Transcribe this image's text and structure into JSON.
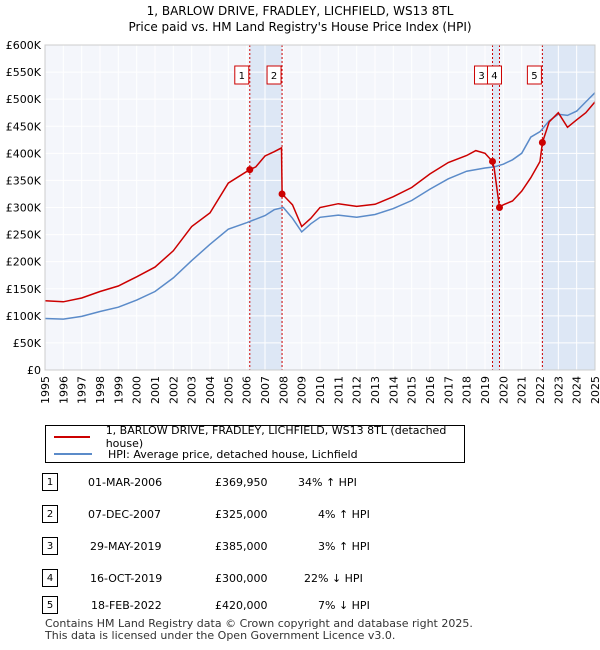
{
  "chart_data": {
    "type": "line",
    "title": "1, BARLOW DRIVE, FRADLEY, LICHFIELD, WS13 8TL",
    "subtitle": "Price paid vs. HM Land Registry's House Price Index (HPI)",
    "xlim": [
      1995,
      2025
    ],
    "ylim": [
      0,
      600000
    ],
    "x_ticks": [
      1995,
      1996,
      1997,
      1998,
      1999,
      2000,
      2001,
      2002,
      2003,
      2004,
      2005,
      2006,
      2007,
      2008,
      2009,
      2010,
      2011,
      2012,
      2013,
      2014,
      2015,
      2016,
      2017,
      2018,
      2019,
      2020,
      2021,
      2022,
      2023,
      2024,
      2025
    ],
    "y_ticks": [
      {
        "value": 0,
        "label": "£0"
      },
      {
        "value": 50000,
        "label": "£50K"
      },
      {
        "value": 100000,
        "label": "£100K"
      },
      {
        "value": 150000,
        "label": "£150K"
      },
      {
        "value": 200000,
        "label": "£200K"
      },
      {
        "value": 250000,
        "label": "£250K"
      },
      {
        "value": 300000,
        "label": "£300K"
      },
      {
        "value": 350000,
        "label": "£350K"
      },
      {
        "value": 400000,
        "label": "£400K"
      },
      {
        "value": 450000,
        "label": "£450K"
      },
      {
        "value": 500000,
        "label": "£500K"
      },
      {
        "value": 550000,
        "label": "£550K"
      },
      {
        "value": 600000,
        "label": "£600K"
      }
    ],
    "grid": true,
    "shaded_spans": [
      [
        2006.17,
        2007.93
      ],
      [
        2019.41,
        2019.79
      ],
      [
        2022.13,
        2025.0
      ]
    ],
    "series": [
      {
        "name": "1, BARLOW DRIVE, FRADLEY, LICHFIELD, WS13 8TL (detached house)",
        "color": "#cc0000",
        "x": [
          1995.0,
          1996.0,
          1997.0,
          1998.0,
          1999.0,
          2000.0,
          2001.0,
          2002.0,
          2003.0,
          2004.0,
          2005.0,
          2006.17,
          2006.5,
          2007.0,
          2007.5,
          2007.9,
          2007.93,
          2008.5,
          2009.0,
          2009.5,
          2010.0,
          2011.0,
          2012.0,
          2013.0,
          2014.0,
          2015.0,
          2016.0,
          2017.0,
          2018.0,
          2018.5,
          2019.0,
          2019.41,
          2019.5,
          2019.79,
          2020.0,
          2020.5,
          2021.0,
          2021.5,
          2022.0,
          2022.13,
          2022.5,
          2023.0,
          2023.5,
          2024.0,
          2024.5,
          2025.0
        ],
        "y": [
          128000,
          126000,
          133000,
          145000,
          155000,
          172000,
          190000,
          220000,
          265000,
          290000,
          345000,
          369950,
          375000,
          395000,
          403000,
          410000,
          325000,
          305000,
          265000,
          280000,
          300000,
          307000,
          302000,
          306000,
          320000,
          337000,
          362000,
          383000,
          396000,
          405000,
          400000,
          385000,
          372000,
          300000,
          305000,
          312000,
          330000,
          355000,
          385000,
          420000,
          458000,
          475000,
          448000,
          462000,
          475000,
          495000
        ]
      },
      {
        "name": "HPI: Average price, detached house, Lichfield",
        "color": "#5b8bc9",
        "x": [
          1995.0,
          1996.0,
          1997.0,
          1998.0,
          1999.0,
          2000.0,
          2001.0,
          2002.0,
          2003.0,
          2004.0,
          2005.0,
          2006.0,
          2007.0,
          2007.5,
          2008.0,
          2008.5,
          2009.0,
          2009.5,
          2010.0,
          2011.0,
          2012.0,
          2013.0,
          2014.0,
          2015.0,
          2016.0,
          2017.0,
          2018.0,
          2019.0,
          2019.5,
          2020.0,
          2020.5,
          2021.0,
          2021.5,
          2022.0,
          2022.5,
          2023.0,
          2023.5,
          2024.0,
          2024.5,
          2025.0
        ],
        "y": [
          95000,
          94000,
          99000,
          108000,
          116000,
          129000,
          145000,
          170000,
          202000,
          232000,
          260000,
          272000,
          285000,
          296000,
          300000,
          280000,
          255000,
          270000,
          282000,
          286000,
          282000,
          287000,
          298000,
          313000,
          334000,
          353000,
          367000,
          373000,
          375000,
          380000,
          388000,
          400000,
          430000,
          440000,
          460000,
          472000,
          470000,
          478000,
          495000,
          512000
        ]
      }
    ],
    "transactions": [
      {
        "id": "1",
        "x": 2006.17,
        "price": 369950
      },
      {
        "id": "2",
        "x": 2007.93,
        "price": 325000
      },
      {
        "id": "3",
        "x": 2019.41,
        "price": 385000
      },
      {
        "id": "4",
        "x": 2019.79,
        "price": 300000
      },
      {
        "id": "5",
        "x": 2022.13,
        "price": 420000
      }
    ]
  },
  "legend": {
    "property_label": "1, BARLOW DRIVE, FRADLEY, LICHFIELD, WS13 8TL (detached house)",
    "hpi_label": "HPI: Average price, detached house, Lichfield"
  },
  "table": [
    {
      "num": "1",
      "date": "01-MAR-2006",
      "price": "£369,950",
      "hpi": "34% ↑ HPI"
    },
    {
      "num": "2",
      "date": "07-DEC-2007",
      "price": "£325,000",
      "hpi": "4% ↑ HPI"
    },
    {
      "num": "3",
      "date": "29-MAY-2019",
      "price": "£385,000",
      "hpi": "3% ↑ HPI"
    },
    {
      "num": "4",
      "date": "16-OCT-2019",
      "price": "£300,000",
      "hpi": "22% ↓ HPI"
    },
    {
      "num": "5",
      "date": "18-FEB-2022",
      "price": "£420,000",
      "hpi": "7% ↓ HPI"
    }
  ],
  "footer": {
    "line1": "Contains HM Land Registry data © Crown copyright and database right 2025.",
    "line2": "This data is licensed under the Open Government Licence v3.0."
  }
}
